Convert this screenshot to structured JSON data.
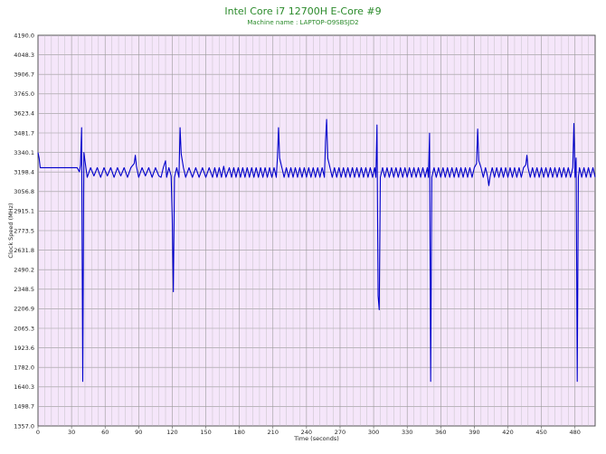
{
  "chart_data": {
    "type": "line",
    "title": "Intel Core i7 12700H E-Core #9",
    "subtitle": "Machine name : LAPTOP-O9SBSJD2",
    "xlabel": "Time (seconds)",
    "ylabel": "Clock Speed (MHz)",
    "xlim": [
      0,
      498
    ],
    "ylim": [
      1357.0,
      4190.0
    ],
    "xticks": [
      0,
      30,
      60,
      90,
      120,
      150,
      180,
      210,
      240,
      270,
      300,
      330,
      360,
      390,
      420,
      450,
      480
    ],
    "yticks": [
      "4190.0",
      "4048.3",
      "3906.7",
      "3765.0",
      "3623.4",
      "3481.7",
      "3340.1",
      "3198.4",
      "3056.8",
      "2915.1",
      "2773.5",
      "2631.8",
      "2490.2",
      "2348.5",
      "2206.9",
      "2065.3",
      "1923.6",
      "1782.0",
      "1640.3",
      "1498.7",
      "1357.0"
    ],
    "grid": true,
    "background_color": "#f5e6fa",
    "line_color": "#0000cc",
    "title_color": "#2a8a2a",
    "series": [
      {
        "values": [
          [
            0,
            3340
          ],
          [
            1,
            3300
          ],
          [
            2,
            3230
          ],
          [
            5,
            3230
          ],
          [
            10,
            3230
          ],
          [
            15,
            3230
          ],
          [
            20,
            3230
          ],
          [
            25,
            3230
          ],
          [
            30,
            3230
          ],
          [
            35,
            3230
          ],
          [
            37,
            3200
          ],
          [
            38,
            3250
          ],
          [
            39,
            3520
          ],
          [
            40,
            1680
          ],
          [
            41,
            3340
          ],
          [
            42,
            3280
          ],
          [
            44,
            3160
          ],
          [
            47,
            3230
          ],
          [
            50,
            3170
          ],
          [
            53,
            3230
          ],
          [
            56,
            3160
          ],
          [
            59,
            3230
          ],
          [
            62,
            3170
          ],
          [
            65,
            3230
          ],
          [
            68,
            3160
          ],
          [
            71,
            3230
          ],
          [
            74,
            3170
          ],
          [
            77,
            3230
          ],
          [
            80,
            3160
          ],
          [
            83,
            3230
          ],
          [
            86,
            3260
          ],
          [
            87,
            3320
          ],
          [
            88,
            3240
          ],
          [
            90,
            3160
          ],
          [
            93,
            3230
          ],
          [
            96,
            3170
          ],
          [
            99,
            3230
          ],
          [
            102,
            3160
          ],
          [
            105,
            3230
          ],
          [
            108,
            3170
          ],
          [
            110,
            3160
          ],
          [
            112,
            3230
          ],
          [
            114,
            3280
          ],
          [
            115,
            3160
          ],
          [
            117,
            3230
          ],
          [
            119,
            3170
          ],
          [
            120,
            2870
          ],
          [
            121,
            2330
          ],
          [
            122,
            3160
          ],
          [
            124,
            3230
          ],
          [
            126,
            3160
          ],
          [
            127,
            3520
          ],
          [
            128,
            3330
          ],
          [
            130,
            3230
          ],
          [
            132,
            3160
          ],
          [
            135,
            3230
          ],
          [
            138,
            3160
          ],
          [
            141,
            3230
          ],
          [
            144,
            3160
          ],
          [
            147,
            3230
          ],
          [
            150,
            3160
          ],
          [
            153,
            3230
          ],
          [
            156,
            3160
          ],
          [
            158,
            3230
          ],
          [
            160,
            3160
          ],
          [
            162,
            3230
          ],
          [
            164,
            3160
          ],
          [
            166,
            3240
          ],
          [
            168,
            3160
          ],
          [
            171,
            3230
          ],
          [
            173,
            3160
          ],
          [
            175,
            3230
          ],
          [
            177,
            3160
          ],
          [
            179,
            3230
          ],
          [
            181,
            3160
          ],
          [
            183,
            3230
          ],
          [
            185,
            3160
          ],
          [
            187,
            3230
          ],
          [
            189,
            3160
          ],
          [
            191,
            3230
          ],
          [
            193,
            3160
          ],
          [
            195,
            3230
          ],
          [
            197,
            3160
          ],
          [
            199,
            3230
          ],
          [
            201,
            3160
          ],
          [
            203,
            3230
          ],
          [
            205,
            3160
          ],
          [
            207,
            3230
          ],
          [
            209,
            3160
          ],
          [
            211,
            3230
          ],
          [
            213,
            3160
          ],
          [
            214,
            3300
          ],
          [
            215,
            3520
          ],
          [
            216,
            3300
          ],
          [
            218,
            3230
          ],
          [
            220,
            3160
          ],
          [
            222,
            3230
          ],
          [
            224,
            3160
          ],
          [
            226,
            3230
          ],
          [
            228,
            3160
          ],
          [
            230,
            3230
          ],
          [
            232,
            3160
          ],
          [
            234,
            3230
          ],
          [
            236,
            3160
          ],
          [
            238,
            3230
          ],
          [
            240,
            3160
          ],
          [
            242,
            3230
          ],
          [
            244,
            3160
          ],
          [
            246,
            3230
          ],
          [
            248,
            3160
          ],
          [
            250,
            3230
          ],
          [
            252,
            3160
          ],
          [
            254,
            3230
          ],
          [
            256,
            3160
          ],
          [
            257,
            3420
          ],
          [
            258,
            3580
          ],
          [
            259,
            3300
          ],
          [
            261,
            3230
          ],
          [
            263,
            3160
          ],
          [
            265,
            3230
          ],
          [
            267,
            3160
          ],
          [
            269,
            3230
          ],
          [
            271,
            3160
          ],
          [
            273,
            3230
          ],
          [
            275,
            3160
          ],
          [
            277,
            3230
          ],
          [
            279,
            3160
          ],
          [
            281,
            3230
          ],
          [
            283,
            3160
          ],
          [
            285,
            3230
          ],
          [
            287,
            3160
          ],
          [
            289,
            3230
          ],
          [
            291,
            3160
          ],
          [
            293,
            3230
          ],
          [
            295,
            3160
          ],
          [
            297,
            3230
          ],
          [
            299,
            3160
          ],
          [
            301,
            3230
          ],
          [
            302,
            3160
          ],
          [
            303,
            3540
          ],
          [
            304,
            2300
          ],
          [
            305,
            2200
          ],
          [
            306,
            3160
          ],
          [
            308,
            3230
          ],
          [
            310,
            3160
          ],
          [
            312,
            3230
          ],
          [
            314,
            3160
          ],
          [
            316,
            3230
          ],
          [
            318,
            3160
          ],
          [
            320,
            3230
          ],
          [
            322,
            3160
          ],
          [
            324,
            3230
          ],
          [
            326,
            3160
          ],
          [
            328,
            3230
          ],
          [
            330,
            3160
          ],
          [
            332,
            3230
          ],
          [
            334,
            3160
          ],
          [
            336,
            3230
          ],
          [
            338,
            3160
          ],
          [
            340,
            3230
          ],
          [
            342,
            3160
          ],
          [
            344,
            3230
          ],
          [
            346,
            3160
          ],
          [
            348,
            3230
          ],
          [
            349,
            3160
          ],
          [
            350,
            3480
          ],
          [
            351,
            1680
          ],
          [
            352,
            3160
          ],
          [
            354,
            3230
          ],
          [
            356,
            3160
          ],
          [
            358,
            3230
          ],
          [
            360,
            3160
          ],
          [
            362,
            3230
          ],
          [
            364,
            3160
          ],
          [
            366,
            3230
          ],
          [
            368,
            3160
          ],
          [
            370,
            3230
          ],
          [
            372,
            3160
          ],
          [
            374,
            3230
          ],
          [
            376,
            3160
          ],
          [
            378,
            3230
          ],
          [
            380,
            3160
          ],
          [
            382,
            3230
          ],
          [
            384,
            3160
          ],
          [
            386,
            3230
          ],
          [
            388,
            3160
          ],
          [
            390,
            3230
          ],
          [
            392,
            3260
          ],
          [
            393,
            3510
          ],
          [
            394,
            3280
          ],
          [
            396,
            3230
          ],
          [
            398,
            3160
          ],
          [
            400,
            3230
          ],
          [
            402,
            3160
          ],
          [
            403,
            3100
          ],
          [
            404,
            3160
          ],
          [
            406,
            3230
          ],
          [
            408,
            3160
          ],
          [
            410,
            3230
          ],
          [
            412,
            3160
          ],
          [
            414,
            3230
          ],
          [
            416,
            3160
          ],
          [
            418,
            3230
          ],
          [
            420,
            3160
          ],
          [
            422,
            3230
          ],
          [
            424,
            3160
          ],
          [
            426,
            3230
          ],
          [
            428,
            3160
          ],
          [
            430,
            3230
          ],
          [
            432,
            3160
          ],
          [
            434,
            3230
          ],
          [
            436,
            3250
          ],
          [
            437,
            3320
          ],
          [
            438,
            3230
          ],
          [
            440,
            3160
          ],
          [
            442,
            3230
          ],
          [
            444,
            3160
          ],
          [
            446,
            3230
          ],
          [
            448,
            3160
          ],
          [
            450,
            3230
          ],
          [
            452,
            3160
          ],
          [
            454,
            3230
          ],
          [
            456,
            3160
          ],
          [
            458,
            3230
          ],
          [
            460,
            3160
          ],
          [
            462,
            3230
          ],
          [
            464,
            3160
          ],
          [
            466,
            3230
          ],
          [
            468,
            3160
          ],
          [
            470,
            3230
          ],
          [
            472,
            3160
          ],
          [
            474,
            3230
          ],
          [
            476,
            3160
          ],
          [
            478,
            3230
          ],
          [
            479,
            3550
          ],
          [
            480,
            3160
          ],
          [
            481,
            3300
          ],
          [
            482,
            1680
          ],
          [
            483,
            3160
          ],
          [
            484,
            3230
          ],
          [
            486,
            3160
          ],
          [
            488,
            3230
          ],
          [
            490,
            3160
          ],
          [
            492,
            3230
          ],
          [
            494,
            3160
          ],
          [
            496,
            3230
          ],
          [
            498,
            3160
          ]
        ]
      }
    ]
  }
}
